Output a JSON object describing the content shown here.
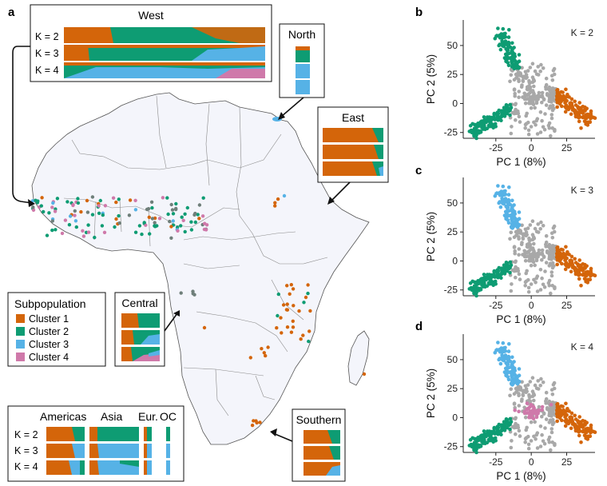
{
  "panels": {
    "a": "a",
    "b": "b",
    "c": "c",
    "d": "d"
  },
  "colors": {
    "cluster1": "#d4650a",
    "cluster2": "#0e9c73",
    "cluster3": "#56b2e6",
    "cluster4": "#cf79aa",
    "grey": "#a8a8a8",
    "land": "#f4f5fb",
    "border": "#8a8a8a"
  },
  "legend": {
    "title": "Subpopulation",
    "items": [
      {
        "label": "Cluster 1",
        "color": "#d4650a"
      },
      {
        "label": "Cluster 2",
        "color": "#0e9c73"
      },
      {
        "label": "Cluster 3",
        "color": "#56b2e6"
      },
      {
        "label": "Cluster 4",
        "color": "#cf79aa"
      }
    ]
  },
  "regions": {
    "west": {
      "title": "West",
      "k_labels": [
        "K = 2",
        "K = 3",
        "K = 4"
      ]
    },
    "north": {
      "title": "North"
    },
    "east": {
      "title": "East"
    },
    "central": {
      "title": "Central"
    },
    "southern": {
      "title": "Southern"
    },
    "outside": {
      "groups": [
        "Americas",
        "Asia",
        "Eur.",
        "OC"
      ],
      "k_labels": [
        "K = 2",
        "K = 3",
        "K = 4"
      ]
    }
  },
  "chart_data": [
    {
      "panel": "b",
      "type": "scatter",
      "annotation": "K = 2",
      "xlabel": "PC 1 (8%)",
      "ylabel": "PC 2 (5%)",
      "xticks": [
        -25,
        0,
        25
      ],
      "yticks": [
        -25,
        0,
        25,
        50
      ],
      "xlim": [
        -48,
        45
      ],
      "ylim": [
        -30,
        72
      ],
      "series_colors": [
        "cluster1",
        "cluster2",
        "grey"
      ]
    },
    {
      "panel": "c",
      "type": "scatter",
      "annotation": "K = 3",
      "xlabel": "PC 1 (8%)",
      "ylabel": "PC 2 (5%)",
      "xticks": [
        -25,
        0,
        25
      ],
      "yticks": [
        -25,
        0,
        25,
        50
      ],
      "xlim": [
        -48,
        45
      ],
      "ylim": [
        -30,
        72
      ],
      "series_colors": [
        "cluster1",
        "cluster2",
        "cluster3",
        "grey"
      ]
    },
    {
      "panel": "d",
      "type": "scatter",
      "annotation": "K = 4",
      "xlabel": "PC 1 (8%)",
      "ylabel": "PC 2 (5%)",
      "xticks": [
        -25,
        0,
        25
      ],
      "yticks": [
        -25,
        0,
        25,
        50
      ],
      "xlim": [
        -48,
        45
      ],
      "ylim": [
        -30,
        72
      ],
      "series_colors": [
        "cluster1",
        "cluster2",
        "cluster3",
        "cluster4",
        "grey"
      ]
    }
  ]
}
